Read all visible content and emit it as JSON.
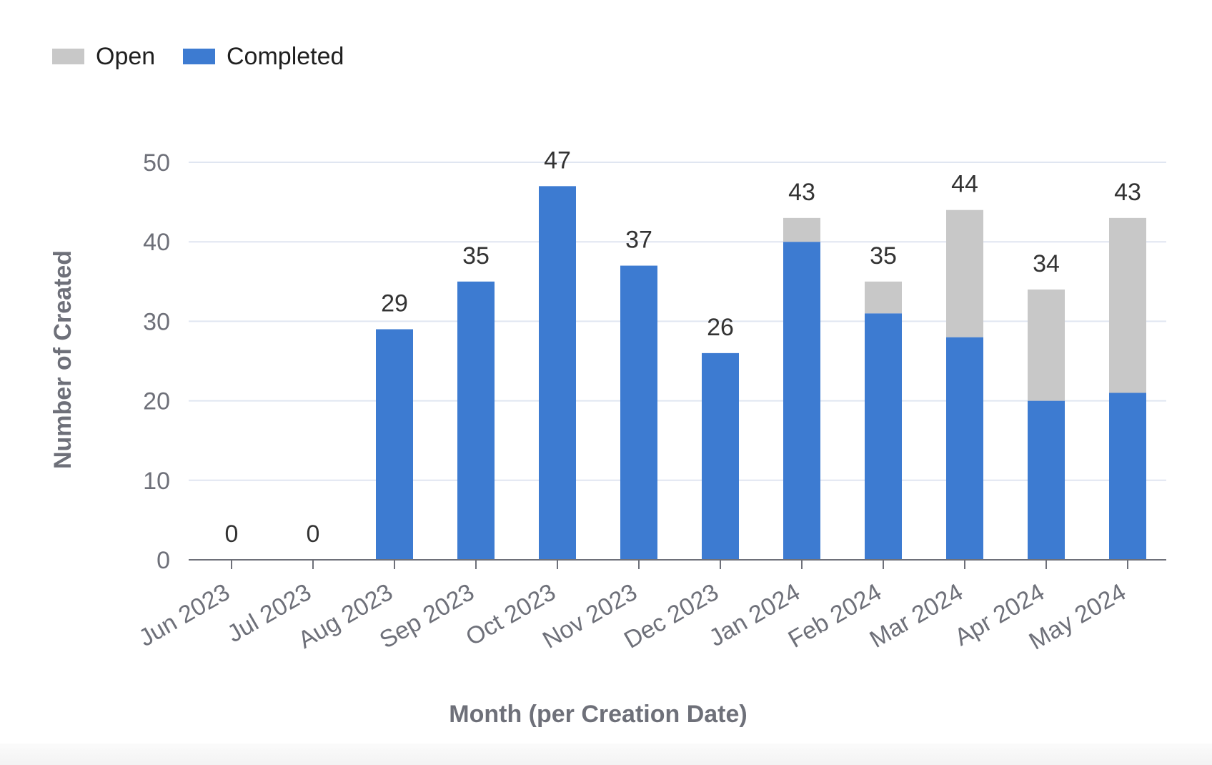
{
  "chart_data": {
    "type": "bar",
    "stacked": true,
    "categories": [
      "Jun 2023",
      "Jul 2023",
      "Aug 2023",
      "Sep 2023",
      "Oct 2023",
      "Nov 2023",
      "Dec 2023",
      "Jan 2024",
      "Feb 2024",
      "Mar 2024",
      "Apr 2024",
      "May 2024"
    ],
    "series": [
      {
        "name": "Completed",
        "color": "#3d7bd1",
        "values": [
          0,
          0,
          29,
          35,
          47,
          37,
          26,
          40,
          31,
          28,
          20,
          21
        ]
      },
      {
        "name": "Open",
        "color": "#c8c8c8",
        "values": [
          0,
          0,
          0,
          0,
          0,
          0,
          0,
          3,
          4,
          16,
          14,
          22
        ]
      }
    ],
    "totals": [
      0,
      0,
      29,
      35,
      47,
      37,
      26,
      43,
      35,
      44,
      34,
      43
    ],
    "legend": [
      "Open",
      "Completed"
    ],
    "legend_position": "top-left",
    "xlabel": "Month (per Creation Date)",
    "ylabel": "Number of Created",
    "ylim": [
      0,
      50
    ],
    "yticks": [
      0,
      10,
      20,
      30,
      40,
      50
    ],
    "grid": true
  }
}
